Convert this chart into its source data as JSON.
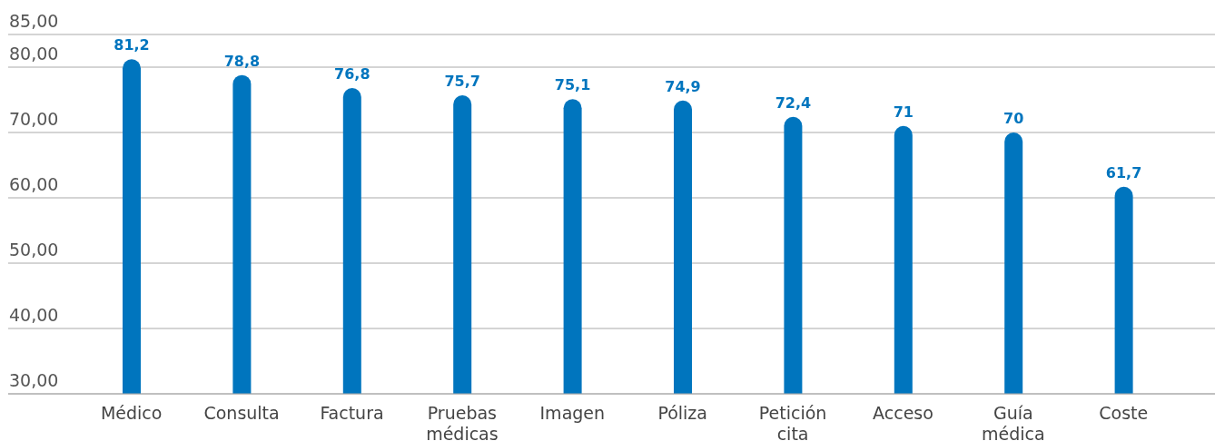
{
  "chart_data": {
    "type": "bar",
    "categories": [
      "Médico",
      "Consulta",
      "Factura",
      "Pruebas médicas",
      "Imagen",
      "Póliza",
      "Petición cita",
      "Acceso",
      "Guía médica",
      "Coste"
    ],
    "values": [
      81.2,
      78.8,
      76.8,
      75.7,
      75.1,
      74.9,
      72.4,
      71,
      70,
      61.7
    ],
    "value_labels": [
      "81,2",
      "78,8",
      "76,8",
      "75,7",
      "75,1",
      "74,9",
      "72,4",
      "71",
      "70",
      "61,7"
    ],
    "color": "#0075be",
    "ylim": [
      30,
      85
    ],
    "yticks": [
      {
        "value": 30,
        "label": "30,00"
      },
      {
        "value": 40,
        "label": "40,00"
      },
      {
        "value": 50,
        "label": "50,00"
      },
      {
        "value": 60,
        "label": "60,00"
      },
      {
        "value": 70,
        "label": "70,00"
      },
      {
        "value": 80,
        "label": "80,00"
      },
      {
        "value": 85,
        "label": "85,00"
      }
    ],
    "grid": "y",
    "legend": false
  }
}
